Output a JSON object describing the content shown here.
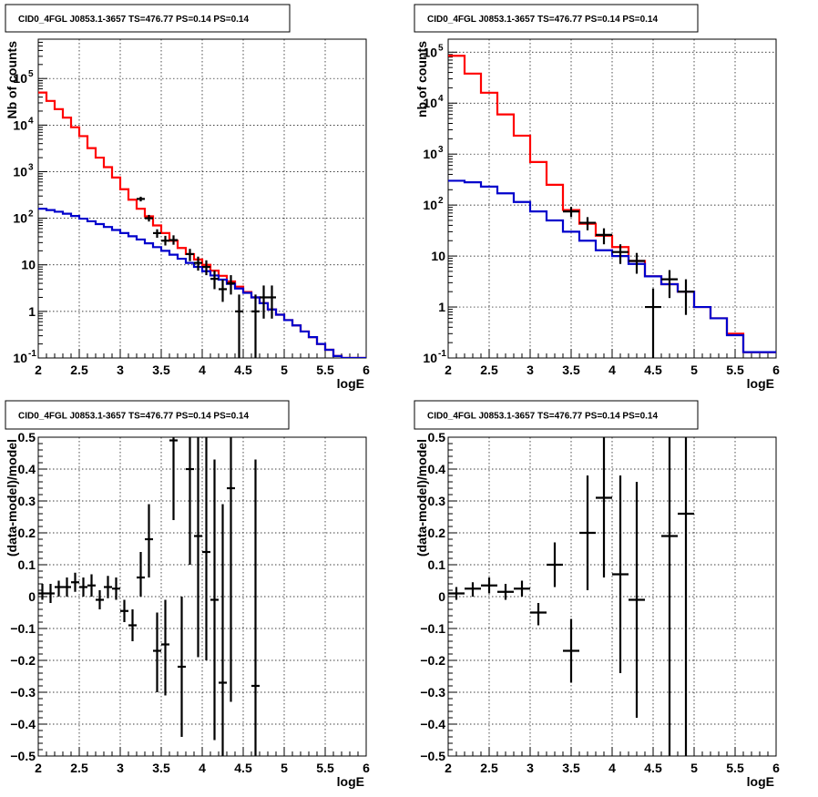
{
  "colors": {
    "data": "#000000",
    "total_model": "#ff0000",
    "source_model": "#0000cc",
    "grid": "#000000"
  },
  "chart_data": [
    {
      "type": "line",
      "title": "CID0_4FGL J0853.1-3657 TS=476.77 PS=0.14 PS=0.14",
      "xlabel": "logE",
      "ylabel": "Nb of counts",
      "xlim": [
        2,
        6
      ],
      "ylim": [
        0.1,
        700000
      ],
      "yscale": "log",
      "grid": true,
      "xticks": [
        "2",
        "2.5",
        "3",
        "3.5",
        "4",
        "4.5",
        "5",
        "5.5",
        "6"
      ],
      "yticks": [
        {
          "v": 0.1,
          "label": "10",
          "sup": "-1"
        },
        {
          "v": 1,
          "label": "1",
          "sup": ""
        },
        {
          "v": 10,
          "label": "10",
          "sup": ""
        },
        {
          "v": 100,
          "label": "10",
          "sup": "2"
        },
        {
          "v": 1000,
          "label": "10",
          "sup": "3"
        },
        {
          "v": 10000,
          "label": "10",
          "sup": "4"
        },
        {
          "v": 100000,
          "label": "10",
          "sup": "5"
        }
      ],
      "bin_edges": [
        2.0,
        2.1,
        2.2,
        2.3,
        2.4,
        2.5,
        2.6,
        2.7,
        2.8,
        2.9,
        3.0,
        3.1,
        3.2,
        3.3,
        3.4,
        3.5,
        3.6,
        3.7,
        3.8,
        3.9,
        4.0,
        4.1,
        4.2,
        4.3,
        4.4,
        4.5,
        4.6,
        4.7,
        4.8,
        4.9,
        5.0,
        5.1,
        5.2,
        5.3,
        5.4,
        5.5,
        5.6,
        5.7,
        5.8,
        5.9,
        6.0
      ],
      "series": [
        {
          "key": "total",
          "values": [
            50000,
            33000,
            22000,
            14500,
            9000,
            5800,
            3200,
            2000,
            1250,
            750,
            420,
            250,
            160,
            110,
            70,
            48,
            33,
            23,
            17,
            13,
            10,
            7.5,
            5.8,
            4.4,
            3.4,
            2.6,
            2.0,
            1.5,
            1.1,
            0.85,
            0.65,
            0.5,
            0.37,
            0.28,
            0.2,
            0.15,
            0.11,
            0.09,
            0.09,
            0.09
          ]
        },
        {
          "key": "source",
          "values": [
            160,
            150,
            138,
            125,
            112,
            98,
            86,
            75,
            65,
            56,
            48,
            41,
            35,
            29,
            24,
            20,
            16.5,
            13.5,
            11,
            9,
            7.3,
            5.9,
            4.8,
            3.9,
            3.1,
            2.5,
            2.0,
            1.5,
            1.1,
            0.85,
            0.65,
            0.5,
            0.37,
            0.28,
            0.2,
            0.15,
            0.11,
            0.09,
            0.09,
            0.09
          ]
        }
      ],
      "points": [
        {
          "x": 3.25,
          "y": 260,
          "ylo": 230,
          "yhi": 290
        },
        {
          "x": 3.35,
          "y": 100,
          "ylo": 85,
          "yhi": 118
        },
        {
          "x": 3.45,
          "y": 48,
          "ylo": 38,
          "yhi": 58
        },
        {
          "x": 3.55,
          "y": 33,
          "ylo": 26,
          "yhi": 42
        },
        {
          "x": 3.65,
          "y": 34,
          "ylo": 27,
          "yhi": 43
        },
        {
          "x": 3.85,
          "y": 17,
          "ylo": 12,
          "yhi": 22
        },
        {
          "x": 3.95,
          "y": 11,
          "ylo": 7.5,
          "yhi": 15
        },
        {
          "x": 4.05,
          "y": 9,
          "ylo": 6,
          "yhi": 12.5
        },
        {
          "x": 4.15,
          "y": 5,
          "ylo": 3,
          "yhi": 7.5
        },
        {
          "x": 4.25,
          "y": 3,
          "ylo": 1.6,
          "yhi": 4.8
        },
        {
          "x": 4.35,
          "y": 4,
          "ylo": 2.3,
          "yhi": 6
        },
        {
          "x": 4.45,
          "y": 1,
          "ylo": 0.1,
          "yhi": 2.3
        },
        {
          "x": 4.65,
          "y": 1,
          "ylo": 0.1,
          "yhi": 2.3
        },
        {
          "x": 4.75,
          "y": 2,
          "ylo": 0.7,
          "yhi": 3.6
        },
        {
          "x": 4.85,
          "y": 2,
          "ylo": 0.7,
          "yhi": 3.6
        }
      ]
    },
    {
      "type": "line",
      "title": "CID0_4FGL J0853.1-3657 TS=476.77 PS=0.14 PS=0.14",
      "xlabel": "logE",
      "ylabel": "nb of counts",
      "xlim": [
        2,
        6
      ],
      "ylim": [
        0.1,
        180000
      ],
      "yscale": "log",
      "grid": true,
      "xticks": [
        "2",
        "2.5",
        "3",
        "3.5",
        "4",
        "4.5",
        "5",
        "5.5",
        "6"
      ],
      "yticks": [
        {
          "v": 0.1,
          "label": "10",
          "sup": "-1"
        },
        {
          "v": 1,
          "label": "1",
          "sup": ""
        },
        {
          "v": 10,
          "label": "10",
          "sup": ""
        },
        {
          "v": 100,
          "label": "10",
          "sup": "2"
        },
        {
          "v": 1000,
          "label": "10",
          "sup": "3"
        },
        {
          "v": 10000,
          "label": "10",
          "sup": "4"
        },
        {
          "v": 100000,
          "label": "10",
          "sup": "5"
        }
      ],
      "bin_edges": [
        2.0,
        2.2,
        2.4,
        2.6,
        2.8,
        3.0,
        3.2,
        3.4,
        3.6,
        3.8,
        4.0,
        4.2,
        4.4,
        4.6,
        4.8,
        5.0,
        5.2,
        5.4,
        5.6,
        5.8,
        6.0
      ],
      "series": [
        {
          "key": "total",
          "values": [
            85000,
            38000,
            16000,
            6000,
            2300,
            700,
            250,
            80,
            43,
            25,
            15,
            8,
            4,
            2.8,
            2,
            1,
            0.6,
            0.3,
            0.13,
            0.13
          ]
        },
        {
          "key": "source",
          "values": [
            300,
            280,
            230,
            170,
            115,
            75,
            50,
            30,
            20,
            13,
            10,
            7,
            4,
            2.8,
            2,
            1,
            0.6,
            0.28,
            0.13,
            0.13
          ]
        }
      ],
      "points": [
        {
          "x": 3.5,
          "y": 75,
          "ylo": 58,
          "yhi": 92
        },
        {
          "x": 3.7,
          "y": 45,
          "ylo": 32,
          "yhi": 58
        },
        {
          "x": 3.9,
          "y": 26,
          "ylo": 17,
          "yhi": 35
        },
        {
          "x": 4.1,
          "y": 12,
          "ylo": 7,
          "yhi": 17
        },
        {
          "x": 4.3,
          "y": 8,
          "ylo": 4.5,
          "yhi": 11.5
        },
        {
          "x": 4.5,
          "y": 1,
          "ylo": 0.1,
          "yhi": 2.3
        },
        {
          "x": 4.7,
          "y": 3.5,
          "ylo": 1.5,
          "yhi": 5.3
        },
        {
          "x": 4.9,
          "y": 2,
          "ylo": 0.7,
          "yhi": 3.5
        }
      ]
    },
    {
      "type": "scatter",
      "title": "CID0_4FGL J0853.1-3657 TS=476.77 PS=0.14 PS=0.14",
      "xlabel": "logE",
      "ylabel": "(data-model)/model",
      "xlim": [
        2,
        6
      ],
      "ylim": [
        -0.5,
        0.5
      ],
      "yscale": "linear",
      "grid": true,
      "xticks": [
        "2",
        "2.5",
        "3",
        "3.5",
        "4",
        "4.5",
        "5",
        "5.5",
        "6"
      ],
      "yticks": [
        {
          "v": -0.5,
          "label": "−0.5",
          "sup": ""
        },
        {
          "v": -0.4,
          "label": "−0.4",
          "sup": ""
        },
        {
          "v": -0.3,
          "label": "−0.3",
          "sup": ""
        },
        {
          "v": -0.2,
          "label": "−0.2",
          "sup": ""
        },
        {
          "v": -0.1,
          "label": "−0.1",
          "sup": ""
        },
        {
          "v": 0,
          "label": "0",
          "sup": ""
        },
        {
          "v": 0.1,
          "label": "0.1",
          "sup": ""
        },
        {
          "v": 0.2,
          "label": "0.2",
          "sup": ""
        },
        {
          "v": 0.3,
          "label": "0.3",
          "sup": ""
        },
        {
          "v": 0.4,
          "label": "0.4",
          "sup": ""
        },
        {
          "v": 0.5,
          "label": "0.5",
          "sup": ""
        }
      ],
      "xhalf": 0.05,
      "points": [
        {
          "x": 2.05,
          "y": 0.01,
          "ylo": -0.01,
          "yhi": 0.04
        },
        {
          "x": 2.15,
          "y": 0.01,
          "ylo": -0.02,
          "yhi": 0.04
        },
        {
          "x": 2.25,
          "y": 0.03,
          "ylo": 0.0,
          "yhi": 0.05
        },
        {
          "x": 2.35,
          "y": 0.03,
          "ylo": 0.0,
          "yhi": 0.06
        },
        {
          "x": 2.45,
          "y": 0.045,
          "ylo": 0.015,
          "yhi": 0.075
        },
        {
          "x": 2.55,
          "y": 0.03,
          "ylo": 0.0,
          "yhi": 0.06
        },
        {
          "x": 2.65,
          "y": 0.035,
          "ylo": 0.0,
          "yhi": 0.07
        },
        {
          "x": 2.75,
          "y": -0.01,
          "ylo": -0.04,
          "yhi": 0.02
        },
        {
          "x": 2.85,
          "y": 0.03,
          "ylo": -0.005,
          "yhi": 0.065
        },
        {
          "x": 2.95,
          "y": 0.025,
          "ylo": -0.01,
          "yhi": 0.06
        },
        {
          "x": 3.05,
          "y": -0.045,
          "ylo": -0.08,
          "yhi": -0.01
        },
        {
          "x": 3.15,
          "y": -0.09,
          "ylo": -0.14,
          "yhi": -0.04
        },
        {
          "x": 3.25,
          "y": 0.06,
          "ylo": 0.0,
          "yhi": 0.14
        },
        {
          "x": 3.35,
          "y": 0.18,
          "ylo": 0.06,
          "yhi": 0.29
        },
        {
          "x": 3.45,
          "y": -0.17,
          "ylo": -0.3,
          "yhi": -0.05
        },
        {
          "x": 3.55,
          "y": -0.15,
          "ylo": -0.31,
          "yhi": -0.01
        },
        {
          "x": 3.65,
          "y": 0.49,
          "ylo": 0.24,
          "yhi": 0.5
        },
        {
          "x": 3.75,
          "y": -0.22,
          "ylo": -0.44,
          "yhi": 0.0
        },
        {
          "x": 3.85,
          "y": 0.4,
          "ylo": 0.1,
          "yhi": 0.5
        },
        {
          "x": 3.95,
          "y": 0.19,
          "ylo": -0.19,
          "yhi": 0.5
        },
        {
          "x": 4.05,
          "y": 0.14,
          "ylo": -0.2,
          "yhi": 0.5
        },
        {
          "x": 4.15,
          "y": -0.01,
          "ylo": -0.45,
          "yhi": 0.43
        },
        {
          "x": 4.25,
          "y": -0.27,
          "ylo": -0.5,
          "yhi": 0.29
        },
        {
          "x": 4.35,
          "y": 0.34,
          "ylo": -0.33,
          "yhi": 0.5
        },
        {
          "x": 4.65,
          "y": -0.28,
          "ylo": -0.5,
          "yhi": 0.43
        }
      ]
    },
    {
      "type": "scatter",
      "title": "CID0_4FGL J0853.1-3657 TS=476.77 PS=0.14 PS=0.14",
      "xlabel": "logE",
      "ylabel": "(data-model)/model",
      "xlim": [
        2,
        6
      ],
      "ylim": [
        -0.5,
        0.5
      ],
      "yscale": "linear",
      "grid": true,
      "xticks": [
        "2",
        "2.5",
        "3",
        "3.5",
        "4",
        "4.5",
        "5",
        "5.5",
        "6"
      ],
      "yticks": [
        {
          "v": -0.5,
          "label": "−0.5",
          "sup": ""
        },
        {
          "v": -0.4,
          "label": "−0.4",
          "sup": ""
        },
        {
          "v": -0.3,
          "label": "−0.3",
          "sup": ""
        },
        {
          "v": -0.2,
          "label": "−0.2",
          "sup": ""
        },
        {
          "v": -0.1,
          "label": "−0.1",
          "sup": ""
        },
        {
          "v": 0,
          "label": "0",
          "sup": ""
        },
        {
          "v": 0.1,
          "label": "0.1",
          "sup": ""
        },
        {
          "v": 0.2,
          "label": "0.2",
          "sup": ""
        },
        {
          "v": 0.3,
          "label": "0.3",
          "sup": ""
        },
        {
          "v": 0.4,
          "label": "0.4",
          "sup": ""
        },
        {
          "v": 0.5,
          "label": "0.5",
          "sup": ""
        }
      ],
      "xhalf": 0.1,
      "points": [
        {
          "x": 2.1,
          "y": 0.01,
          "ylo": -0.01,
          "yhi": 0.03
        },
        {
          "x": 2.3,
          "y": 0.025,
          "ylo": 0.0,
          "yhi": 0.045
        },
        {
          "x": 2.5,
          "y": 0.035,
          "ylo": 0.01,
          "yhi": 0.06
        },
        {
          "x": 2.7,
          "y": 0.015,
          "ylo": -0.01,
          "yhi": 0.04
        },
        {
          "x": 2.9,
          "y": 0.025,
          "ylo": 0.0,
          "yhi": 0.05
        },
        {
          "x": 3.1,
          "y": -0.05,
          "ylo": -0.09,
          "yhi": -0.02
        },
        {
          "x": 3.3,
          "y": 0.1,
          "ylo": 0.03,
          "yhi": 0.17
        },
        {
          "x": 3.5,
          "y": -0.17,
          "ylo": -0.27,
          "yhi": -0.07
        },
        {
          "x": 3.7,
          "y": 0.2,
          "ylo": 0.02,
          "yhi": 0.38
        },
        {
          "x": 3.9,
          "y": 0.31,
          "ylo": 0.06,
          "yhi": 0.5
        },
        {
          "x": 4.1,
          "y": 0.07,
          "ylo": -0.24,
          "yhi": 0.38
        },
        {
          "x": 4.3,
          "y": -0.01,
          "ylo": -0.38,
          "yhi": 0.36
        },
        {
          "x": 4.7,
          "y": 0.19,
          "ylo": -0.5,
          "yhi": 0.5
        },
        {
          "x": 4.9,
          "y": 0.26,
          "ylo": -0.5,
          "yhi": 0.5
        }
      ]
    }
  ]
}
